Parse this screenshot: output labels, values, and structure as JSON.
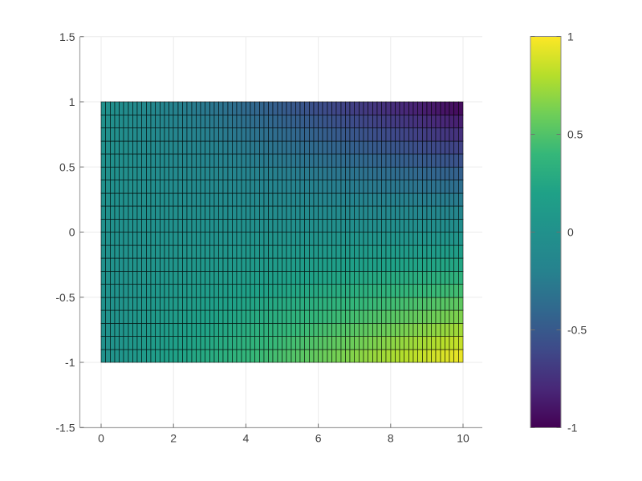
{
  "figure": {
    "background": "#ffffff",
    "title": ""
  },
  "chart_data": {
    "type": "heatmap",
    "title": "",
    "xlabel": "",
    "ylabel": "",
    "grid": true,
    "legend": "none",
    "colorbar_position": "right",
    "axes": {
      "xlim": [
        -0.5,
        10.5
      ],
      "ylim": [
        -1.5,
        1.5
      ],
      "x_ticks": [
        {
          "v": 0,
          "label": "0"
        },
        {
          "v": 2,
          "label": "2"
        },
        {
          "v": 4,
          "label": "4"
        },
        {
          "v": 6,
          "label": "6"
        },
        {
          "v": 8,
          "label": "8"
        },
        {
          "v": 10,
          "label": "10"
        }
      ],
      "y_ticks": [
        {
          "v": 1.5,
          "label": "1.5"
        },
        {
          "v": 1,
          "label": "1"
        },
        {
          "v": 0.5,
          "label": "0.5"
        },
        {
          "v": 0,
          "label": "0"
        },
        {
          "v": -0.5,
          "label": "-0.5"
        },
        {
          "v": -1,
          "label": "-1"
        },
        {
          "v": -1.5,
          "label": "-1.5"
        }
      ]
    },
    "mesh": {
      "x_min": 0,
      "x_max": 10,
      "n_cols": 80,
      "y_min": -1,
      "y_max": 1,
      "n_rows": 20,
      "value_function": "z = -x*y/10",
      "edge_color": "#000000"
    },
    "clim": [
      -1,
      1
    ],
    "colorbar": {
      "ticks": [
        {
          "v": 1,
          "label": "1"
        },
        {
          "v": 0.5,
          "label": "0.5"
        },
        {
          "v": 0,
          "label": "0"
        },
        {
          "v": -0.5,
          "label": "-0.5"
        },
        {
          "v": -1,
          "label": "-1"
        }
      ]
    },
    "colormap": {
      "name": "viridis",
      "stops": [
        "#440154",
        "#482878",
        "#3e4a89",
        "#31688e",
        "#26828e",
        "#21918c",
        "#1fa187",
        "#35b779",
        "#6ece58",
        "#b5de2b",
        "#fde725"
      ]
    },
    "colors": {
      "grid_line": "#ebebeb",
      "axis_line": "#a3a3a3",
      "tick_mark": "#6f6f6f",
      "tick_label": "#3d3d3d",
      "colorbar_border": "#8c8c8c"
    }
  }
}
